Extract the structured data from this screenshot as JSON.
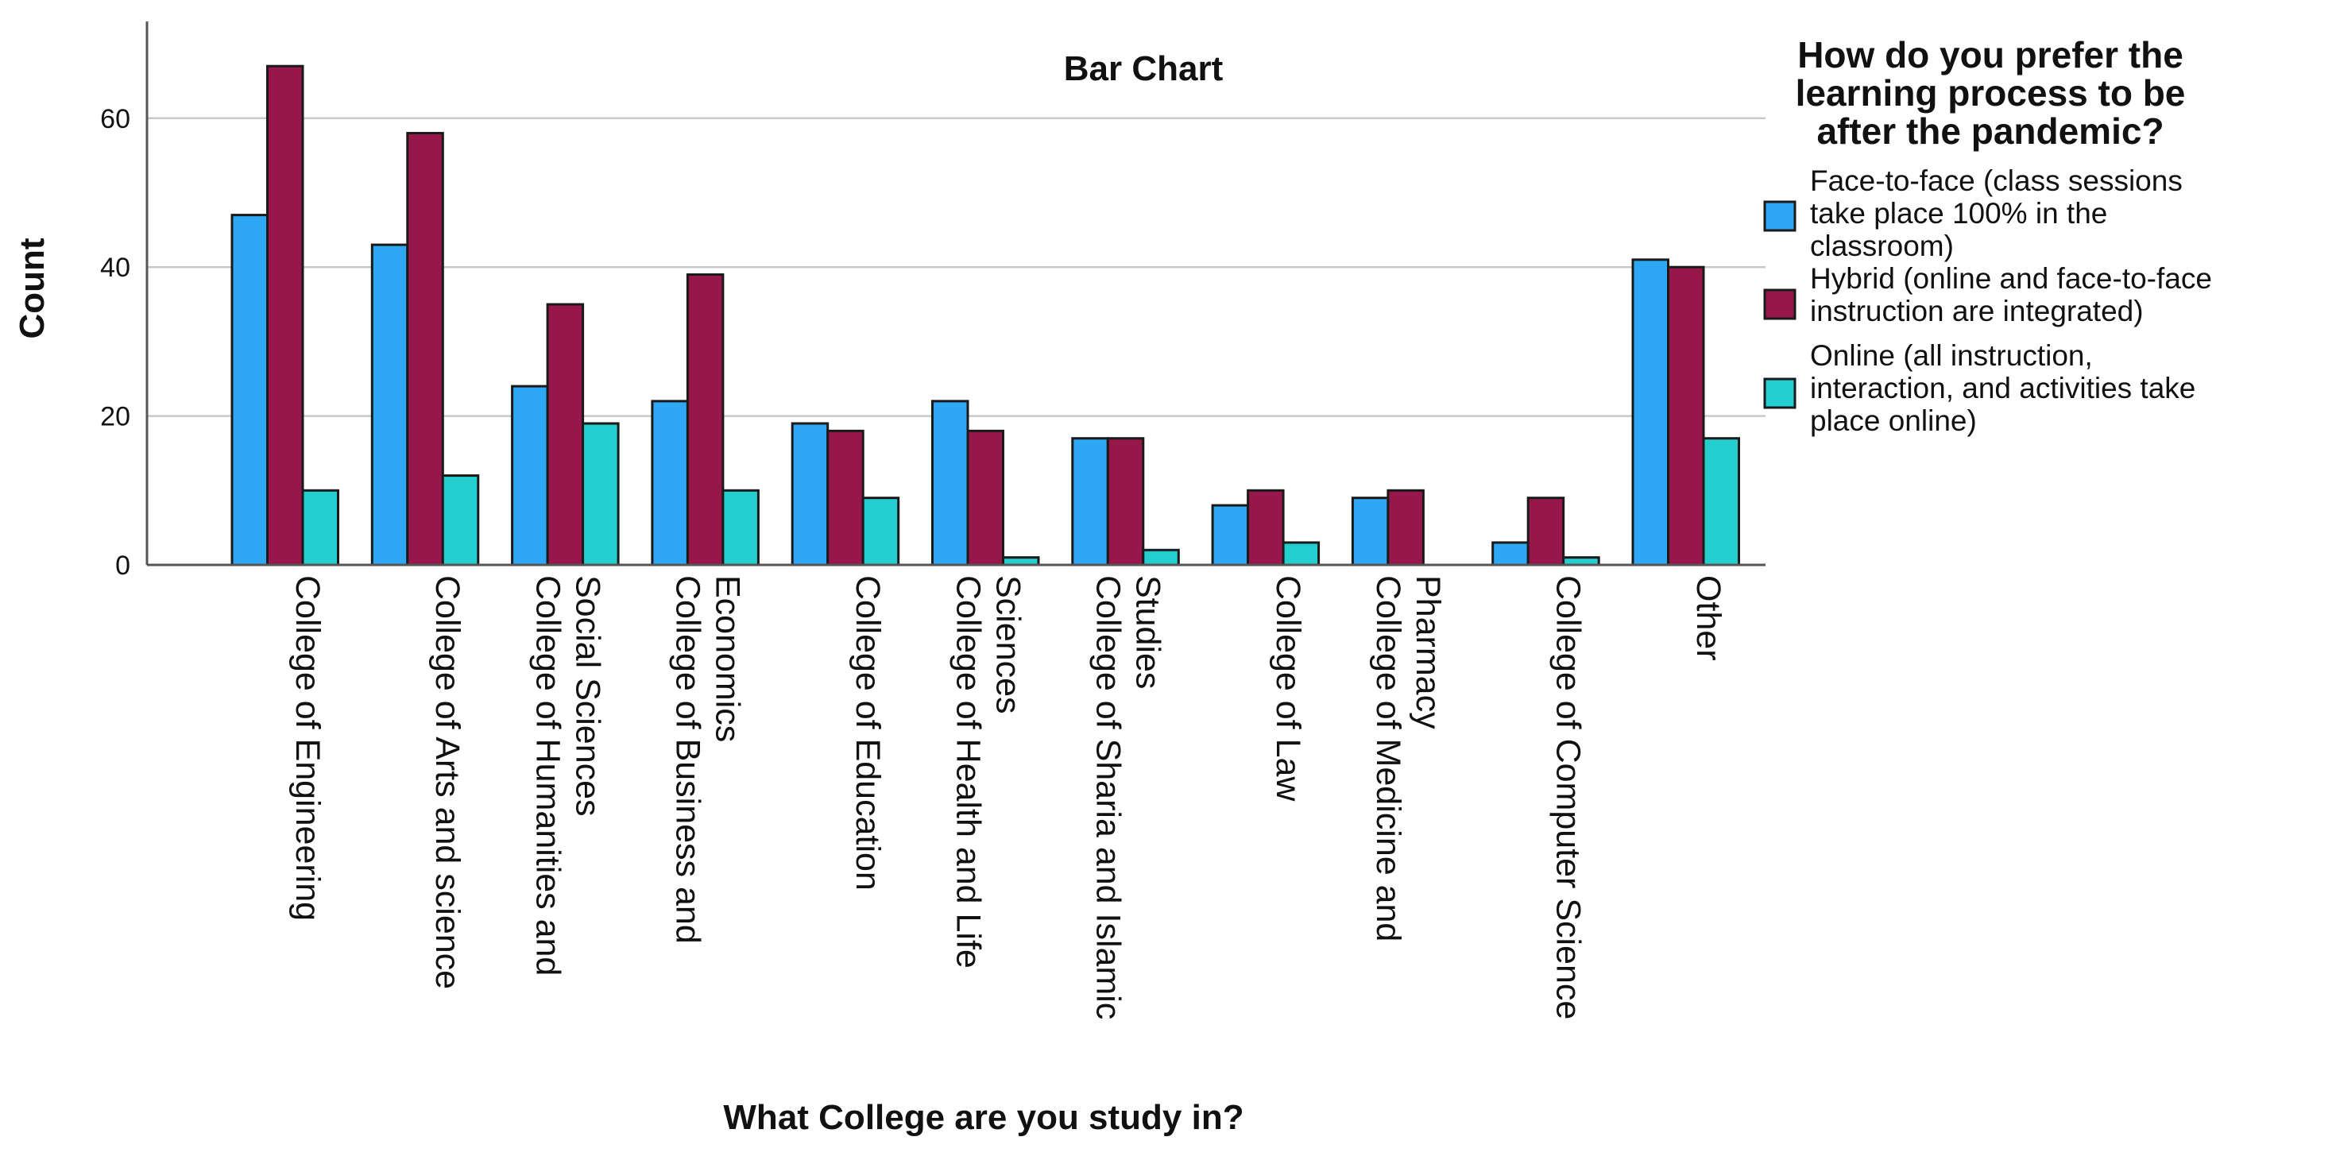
{
  "chart_data": {
    "type": "bar",
    "title": "Bar Chart",
    "xlabel": "What College are you study in?",
    "ylabel": "Count",
    "ylim": [
      0,
      73
    ],
    "yticks": [
      0,
      20,
      40,
      60
    ],
    "grid": true,
    "legend_position": "right",
    "legend_title": "How do you prefer the learning process to be after the pandemic?",
    "legend_title_lines": [
      "How do you prefer the",
      "learning process to be",
      "after the pandemic?"
    ],
    "categories": [
      "College of Engineering",
      "College of Arts and science",
      "College of Humanities and Social Sciences",
      "College of Business and Economics",
      "College of Education",
      "College of Health and Life Sciences",
      "College of Sharia and Islamic Studies",
      "College of Law",
      "College of Medicine and Pharmacy",
      "College of Computer Science",
      "Other"
    ],
    "category_lines": [
      [
        "College of Engineering"
      ],
      [
        "College of Arts and science"
      ],
      [
        "College of Humanities and",
        "Social Sciences"
      ],
      [
        "College of Business and",
        "Economics"
      ],
      [
        "College of Education"
      ],
      [
        "College of Health and Life",
        "Sciences"
      ],
      [
        "College of Sharia and Islamic",
        "Studies"
      ],
      [
        "College of Law"
      ],
      [
        "College of Medicine and",
        "Pharmacy"
      ],
      [
        "College of Computer Science"
      ],
      [
        "Other"
      ]
    ],
    "series": [
      {
        "name": "Face-to-face (class sessions take place 100% in the classroom)",
        "legend_lines": [
          "Face-to-face (class sessions",
          "take place 100% in the",
          "classroom)"
        ],
        "color": "#2ea8f5",
        "values": [
          47,
          43,
          24,
          22,
          19,
          22,
          17,
          8,
          9,
          3,
          41
        ]
      },
      {
        "name": "Hybrid (online and face-to-face instruction are integrated)",
        "legend_lines": [
          "Hybrid (online and face-to-face",
          "instruction are integrated)"
        ],
        "color": "#98174a",
        "values": [
          67,
          58,
          35,
          39,
          18,
          18,
          17,
          10,
          10,
          9,
          40
        ]
      },
      {
        "name": "Online (all instruction, interaction, and activities take place online)",
        "legend_lines": [
          "Online (all instruction,",
          "interaction, and activities take",
          "place online)"
        ],
        "color": "#25cece",
        "values": [
          10,
          12,
          19,
          10,
          9,
          1,
          2,
          3,
          0,
          1,
          17
        ]
      }
    ]
  }
}
